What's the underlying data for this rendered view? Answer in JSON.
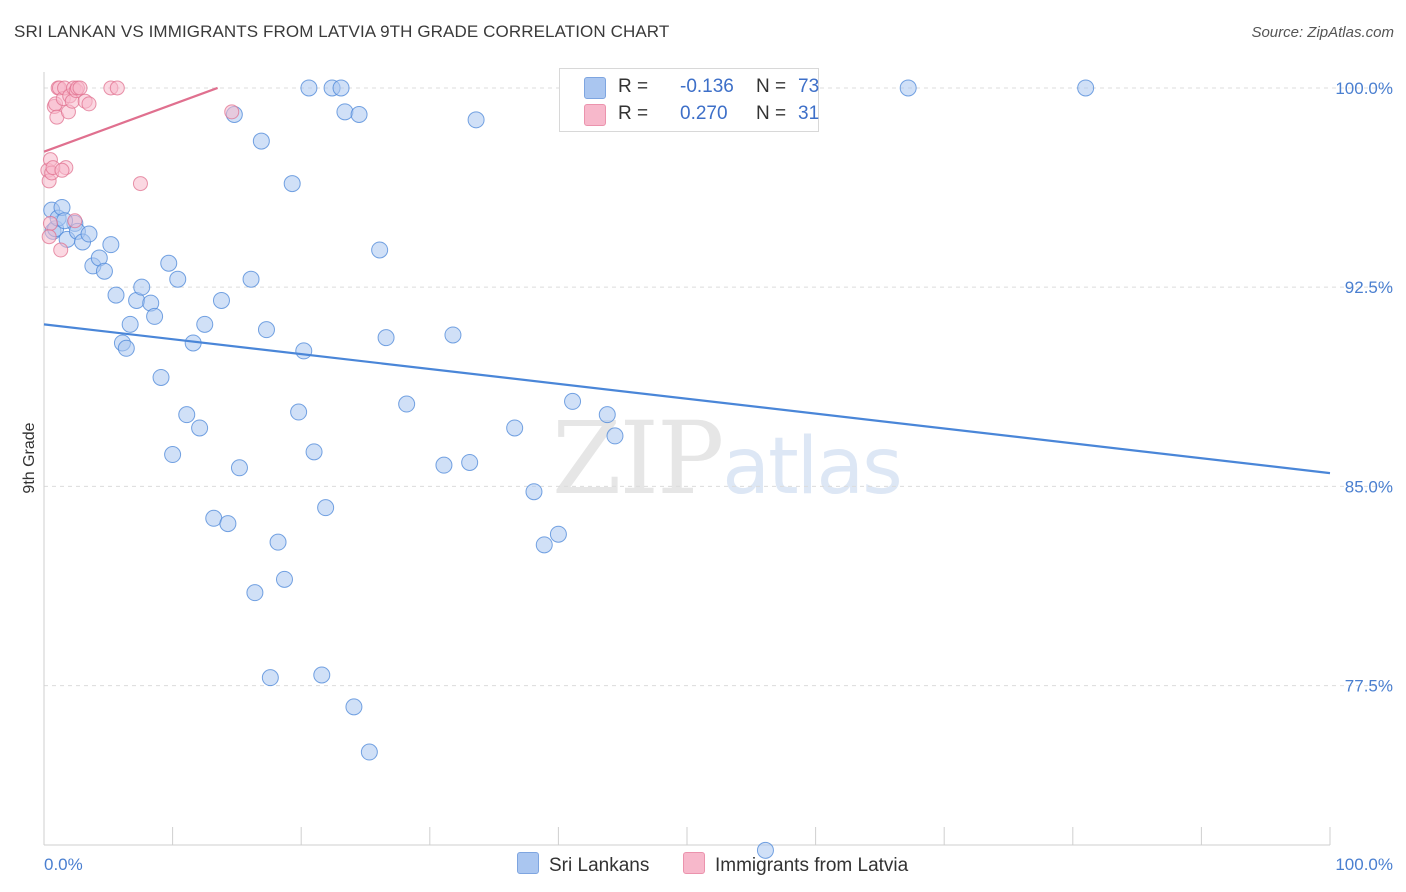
{
  "title": "SRI LANKAN VS IMMIGRANTS FROM LATVIA 9TH GRADE CORRELATION CHART",
  "source": "Source: ZipAtlas.com",
  "watermark": {
    "zip": "ZIP",
    "atlas": "atlas"
  },
  "legend": {
    "series1": {
      "r_label": "R =",
      "r_value": "-0.136",
      "n_label": "N =",
      "n_value": "73",
      "color": "#aac6f0"
    },
    "series2": {
      "r_label": "R =",
      "r_value": "0.270",
      "n_label": "N =",
      "n_value": "31",
      "color": "#f7b8cb"
    }
  },
  "bottom_legend": {
    "series1": "Sri Lankans",
    "series2": "Immigrants from Latvia"
  },
  "chart_data": {
    "type": "scatter",
    "xlabel": "",
    "ylabel": "9th Grade",
    "xlim": [
      0,
      100
    ],
    "ylim": [
      71.5,
      100.6
    ],
    "x_tick_labels": [
      "0.0%",
      "100.0%"
    ],
    "y_ticks": [
      77.5,
      85.0,
      92.5,
      100.0
    ],
    "y_tick_labels": [
      "77.5%",
      "85.0%",
      "92.5%",
      "100.0%"
    ],
    "series": [
      {
        "name": "Sri Lankans",
        "color": "#4a86d8",
        "fill": "#aac6f0",
        "trend": {
          "x": [
            0,
            100
          ],
          "y": [
            91.1,
            85.5
          ]
        },
        "points": [
          [
            0.6,
            95.4
          ],
          [
            0.7,
            94.6
          ],
          [
            0.9,
            94.7
          ],
          [
            1.1,
            95.1
          ],
          [
            1.4,
            95.5
          ],
          [
            1.8,
            94.3
          ],
          [
            2.4,
            94.9
          ],
          [
            2.6,
            94.6
          ],
          [
            3.0,
            94.2
          ],
          [
            3.8,
            93.3
          ],
          [
            4.3,
            93.6
          ],
          [
            4.7,
            93.1
          ],
          [
            5.2,
            94.1
          ],
          [
            5.6,
            92.2
          ],
          [
            6.1,
            90.4
          ],
          [
            6.4,
            90.2
          ],
          [
            6.7,
            91.1
          ],
          [
            7.2,
            92.0
          ],
          [
            7.6,
            92.5
          ],
          [
            8.3,
            91.9
          ],
          [
            8.6,
            91.4
          ],
          [
            9.1,
            89.1
          ],
          [
            9.7,
            93.4
          ],
          [
            10.0,
            86.2
          ],
          [
            10.4,
            92.8
          ],
          [
            11.1,
            87.7
          ],
          [
            11.6,
            90.4
          ],
          [
            12.1,
            87.2
          ],
          [
            12.5,
            91.1
          ],
          [
            13.2,
            83.8
          ],
          [
            13.8,
            92.0
          ],
          [
            14.3,
            83.6
          ],
          [
            14.8,
            99.0
          ],
          [
            15.2,
            85.7
          ],
          [
            16.1,
            92.8
          ],
          [
            16.4,
            81.0
          ],
          [
            16.9,
            98.0
          ],
          [
            17.3,
            90.9
          ],
          [
            17.6,
            77.8
          ],
          [
            18.2,
            82.9
          ],
          [
            18.7,
            81.5
          ],
          [
            19.3,
            96.4
          ],
          [
            19.8,
            87.8
          ],
          [
            20.2,
            90.1
          ],
          [
            20.6,
            100.0
          ],
          [
            21.0,
            86.3
          ],
          [
            21.6,
            77.9
          ],
          [
            21.9,
            84.2
          ],
          [
            22.4,
            100.0
          ],
          [
            23.1,
            100.0
          ],
          [
            23.4,
            99.1
          ],
          [
            24.1,
            76.7
          ],
          [
            24.5,
            99.0
          ],
          [
            25.3,
            75.0
          ],
          [
            26.1,
            93.9
          ],
          [
            26.6,
            90.6
          ],
          [
            28.2,
            88.1
          ],
          [
            31.1,
            85.8
          ],
          [
            31.8,
            90.7
          ],
          [
            33.1,
            85.9
          ],
          [
            33.6,
            98.8
          ],
          [
            36.6,
            87.2
          ],
          [
            38.1,
            84.8
          ],
          [
            38.9,
            82.8
          ],
          [
            40.0,
            83.2
          ],
          [
            41.1,
            88.2
          ],
          [
            43.8,
            87.7
          ],
          [
            44.4,
            86.9
          ],
          [
            56.1,
            71.3
          ],
          [
            67.2,
            100.0
          ],
          [
            81.0,
            100.0
          ],
          [
            1.6,
            95.0
          ],
          [
            3.5,
            94.5
          ]
        ]
      },
      {
        "name": "Immigrants from Latvia",
        "color": "#e0708f",
        "fill": "#f7b8cb",
        "trend": {
          "x": [
            0,
            13.5
          ],
          "y": [
            97.6,
            100.0
          ]
        },
        "points": [
          [
            0.3,
            96.9
          ],
          [
            0.4,
            96.5
          ],
          [
            0.5,
            97.3
          ],
          [
            0.6,
            96.8
          ],
          [
            0.7,
            97.0
          ],
          [
            0.8,
            99.3
          ],
          [
            0.9,
            99.4
          ],
          [
            1.0,
            98.9
          ],
          [
            1.1,
            100.0
          ],
          [
            1.2,
            100.0
          ],
          [
            1.3,
            93.9
          ],
          [
            1.5,
            99.6
          ],
          [
            1.6,
            100.0
          ],
          [
            1.7,
            97.0
          ],
          [
            1.9,
            99.1
          ],
          [
            2.0,
            99.7
          ],
          [
            2.2,
            99.5
          ],
          [
            2.3,
            100.0
          ],
          [
            2.5,
            99.9
          ],
          [
            2.6,
            100.0
          ],
          [
            2.8,
            100.0
          ],
          [
            3.2,
            99.5
          ],
          [
            3.5,
            99.4
          ],
          [
            5.2,
            100.0
          ],
          [
            5.7,
            100.0
          ],
          [
            7.5,
            96.4
          ],
          [
            14.6,
            99.1
          ],
          [
            0.5,
            94.9
          ],
          [
            1.4,
            96.9
          ],
          [
            2.4,
            95.0
          ],
          [
            0.4,
            94.4
          ]
        ]
      }
    ]
  }
}
